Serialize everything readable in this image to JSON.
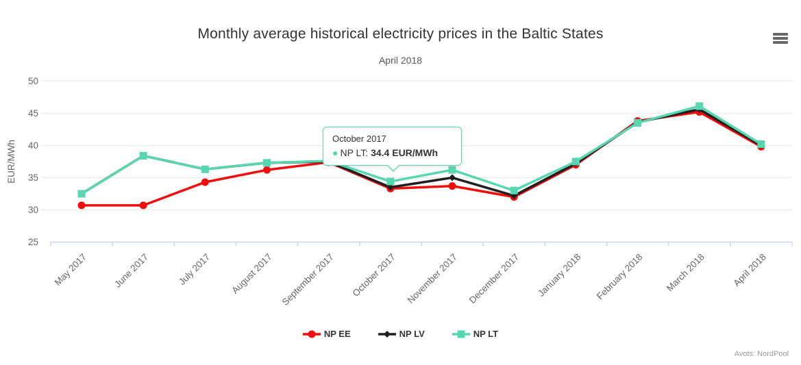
{
  "chart_data": {
    "type": "line",
    "title": "Monthly average historical electricity prices in the Baltic States",
    "subtitle": "April 2018",
    "xlabel": "",
    "ylabel": "EUR/MWh",
    "ylim": [
      25,
      52
    ],
    "yticks": [
      25,
      30,
      35,
      40,
      45,
      50
    ],
    "grid": true,
    "legend_position": "bottom",
    "categories": [
      "May 2017",
      "June 2017",
      "July 2017",
      "August 2017",
      "September 2017",
      "October 2017",
      "November 2017",
      "December 2017",
      "January 2018",
      "February 2018",
      "March 2018",
      "April 2018"
    ],
    "series": [
      {
        "name": "NP EE",
        "color": "#f20d0d",
        "marker": "circle",
        "values": [
          30.7,
          30.7,
          34.3,
          36.2,
          37.4,
          33.3,
          33.7,
          32.0,
          37.0,
          43.8,
          45.2,
          39.8
        ]
      },
      {
        "name": "NP LV",
        "color": "#1f1f1f",
        "marker": "diamond",
        "values": [
          32.5,
          38.4,
          36.3,
          37.3,
          37.5,
          33.5,
          35.0,
          32.2,
          37.2,
          43.6,
          45.6,
          40.0
        ]
      },
      {
        "name": "NP LT",
        "color": "#58d6b0",
        "marker": "square",
        "values": [
          32.5,
          38.4,
          36.3,
          37.3,
          37.6,
          34.4,
          36.2,
          33.0,
          37.5,
          43.5,
          46.1,
          40.2
        ]
      }
    ]
  },
  "tooltip": {
    "header": "October 2017",
    "series_name": "NP LT",
    "series_label": "NP LT: ",
    "value_text": "34.4 EUR/MWh",
    "bullet": "●"
  },
  "credits": {
    "text": "Avots: NordPool"
  },
  "icons": {
    "context_menu": "hamburger-menu-icon"
  },
  "colors": {
    "accent_teal": "#58d6b0",
    "axis_line": "#ccd6eb",
    "gridline": "#e6e6e6",
    "axis_label": "#666666",
    "title_text": "#333333",
    "credits_text": "#999999"
  }
}
